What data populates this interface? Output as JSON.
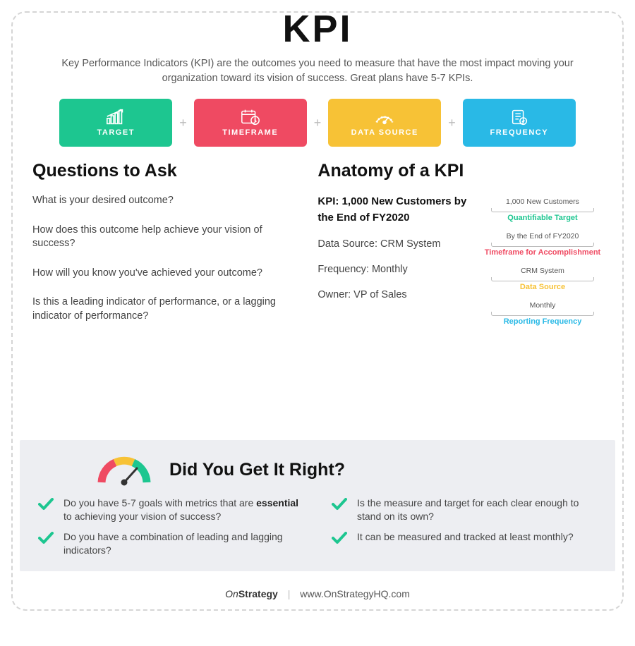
{
  "type": "infographic",
  "background_color": "#ffffff",
  "border_color": "#d5d5d5",
  "title": "KPI",
  "subtitle": "Key Performance Indicators (KPI) are the outcomes you need to measure that have the most impact moving your organization toward its vision of success. Great plans have 5-7 KPIs.",
  "pills": [
    {
      "label": "TARGET",
      "color": "#1dc690",
      "icon": "chart-up"
    },
    {
      "label": "TIMEFRAME",
      "color": "#ef4a62",
      "icon": "calendar-clock"
    },
    {
      "label": "DATA SOURCE",
      "color": "#f7c236",
      "icon": "gauge"
    },
    {
      "label": "FREQUENCY",
      "color": "#29b9e6",
      "icon": "doc-check"
    }
  ],
  "plus_glyph": "+",
  "questions": {
    "heading": "Questions to Ask",
    "items": [
      "What is your desired outcome?",
      "How does this outcome help achieve your vision of success?",
      "How will you know you've achieved your outcome?",
      "Is this a leading indicator of performance, or a lagging indicator of performance?"
    ]
  },
  "anatomy": {
    "heading": "Anatomy of a KPI",
    "kpi_line": "KPI: 1,000 New Customers by the End of FY2020",
    "meta": [
      "Data Source: CRM System",
      "Frequency: Monthly",
      "Owner: VP of Sales"
    ],
    "annotations": [
      {
        "value": "1,000 New Customers",
        "label": "Quantifiable Target",
        "color": "#1dc690"
      },
      {
        "value": "By the End of FY2020",
        "label": "Timeframe for Accomplishment",
        "color": "#ef4a62"
      },
      {
        "value": "CRM System",
        "label": "Data Source",
        "color": "#f7c236"
      },
      {
        "value": "Monthly",
        "label": "Reporting Frequency",
        "color": "#29b9e6"
      }
    ]
  },
  "lower": {
    "bg": "#edeef2",
    "heading": "Did You Get It Right?",
    "gauge_colors": [
      "#ef4a62",
      "#f7c236",
      "#1dc690"
    ],
    "needle_color": "#333333",
    "check_color": "#1dc690",
    "checks": [
      {
        "pre": "Do you have 5-7 goals with metrics that are ",
        "bold": "essential",
        "post": " to achieving your vision of success?"
      },
      {
        "pre": "Is the measure and target for each clear enough to stand on its own?",
        "bold": "",
        "post": ""
      },
      {
        "pre": "Do you have a combination of leading and lagging indicators?",
        "bold": "",
        "post": ""
      },
      {
        "pre": "It can be measured and tracked at least monthly?",
        "bold": "",
        "post": ""
      }
    ]
  },
  "footer": {
    "brand_on": "On",
    "brand_strategy": "Strategy",
    "sep": "|",
    "url": "www.OnStrategyHQ.com"
  }
}
